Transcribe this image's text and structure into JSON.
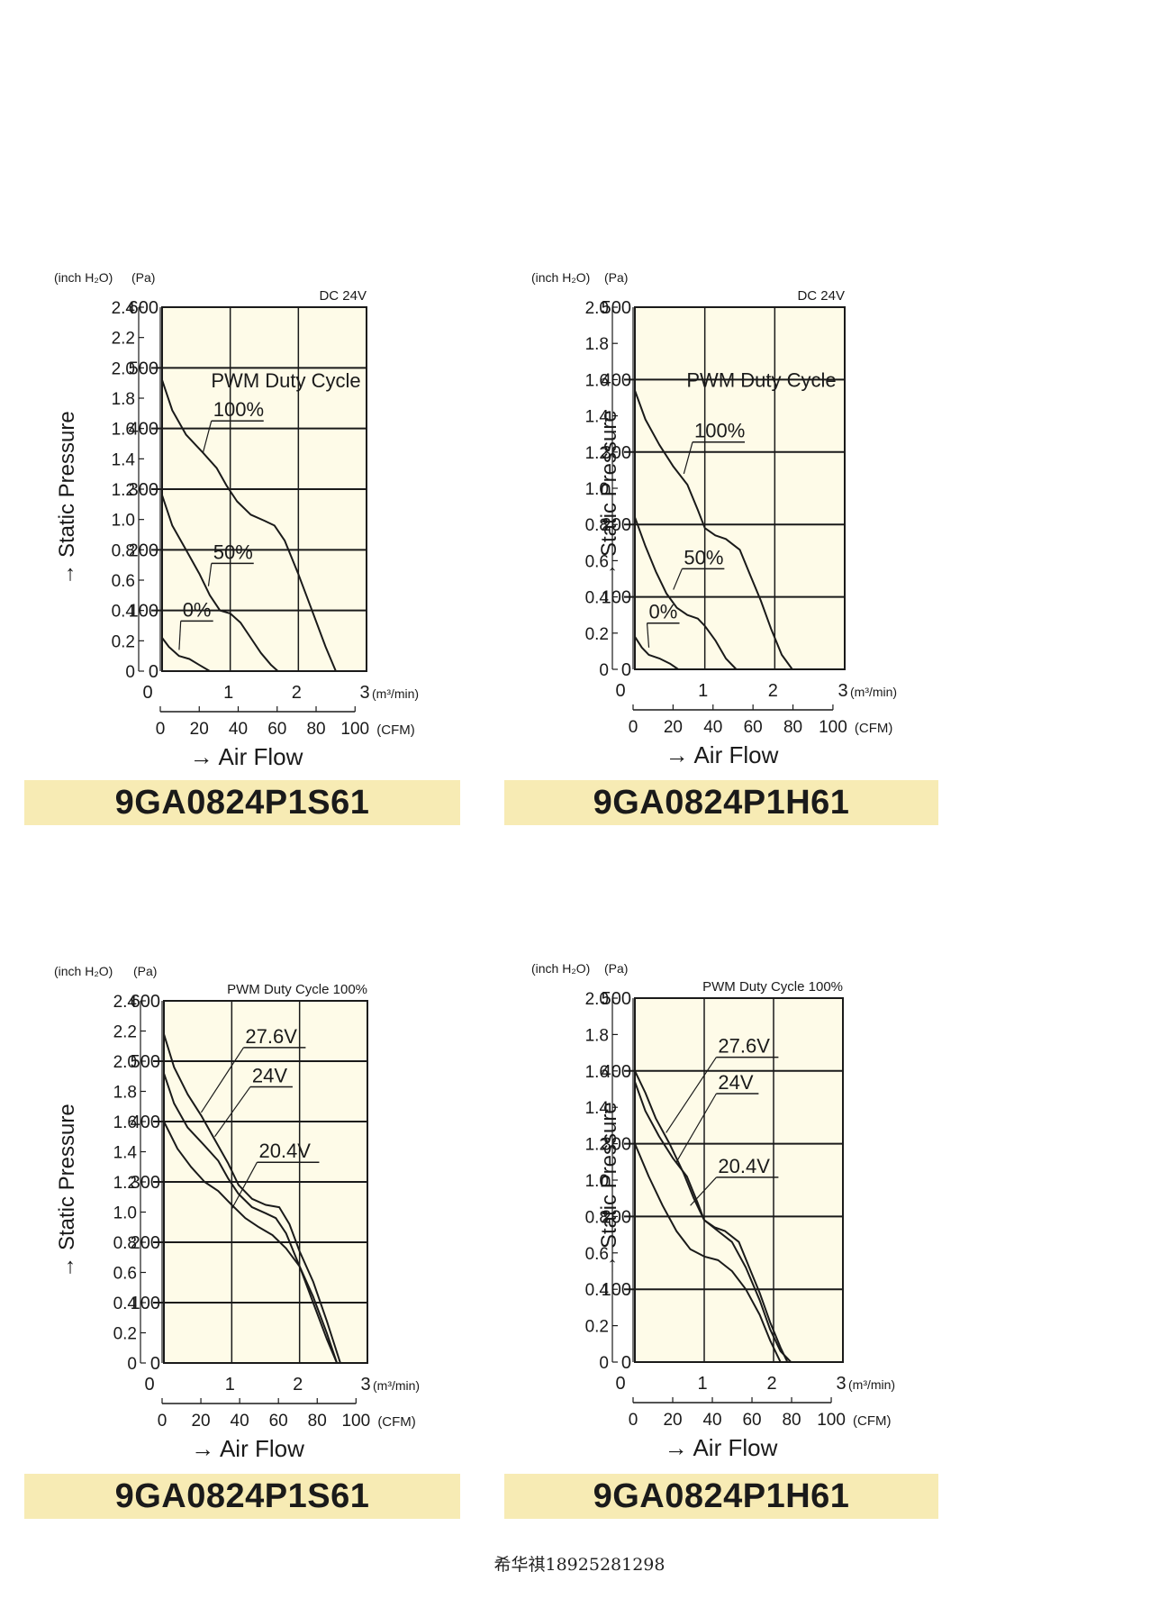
{
  "chart_data": [
    {
      "type": "line",
      "condition": "DC 24V",
      "y_left_label": "(inch H₂O)",
      "y_right_label": "(Pa)",
      "y_axis_title": "→ Static Pressure",
      "x_axis_title": "→ Air Flow",
      "x_unit_m3": "(m³/min)",
      "x_unit_cfm": "(CFM)",
      "legend_title": "PWM Duty Cycle",
      "xlim": [
        0,
        3
      ],
      "ylim": [
        0,
        600
      ],
      "y_pa_ticks": [
        0,
        100,
        200,
        300,
        400,
        500,
        600
      ],
      "y_pa_tick_labels": [
        "0",
        "100",
        "200",
        "300",
        "400",
        "500",
        "600"
      ],
      "y_in_ticks": [
        "0",
        "0.2",
        "0.4",
        "0.6",
        "0.8",
        "1.0",
        "1.2",
        "1.4",
        "1.6",
        "1.8",
        "2.0",
        "2.2",
        "2.4"
      ],
      "x_m3_ticks": [
        "0",
        "1",
        "2",
        "3"
      ],
      "x_cfm_ticks": [
        "0",
        "20",
        "40",
        "60",
        "80",
        "100"
      ],
      "series": [
        {
          "name": "100%",
          "label_pos": [
            0.75,
            420
          ],
          "pointer": [
            0.6,
            360
          ],
          "x": [
            0,
            0.15,
            0.35,
            0.6,
            0.8,
            0.95,
            1.1,
            1.3,
            1.5,
            1.65,
            1.8,
            2.0,
            2.2,
            2.4,
            2.55
          ],
          "y": [
            480,
            430,
            390,
            360,
            335,
            305,
            280,
            258,
            248,
            240,
            215,
            160,
            100,
            40,
            0
          ]
        },
        {
          "name": "50%",
          "label_pos": [
            0.75,
            185
          ],
          "pointer": [
            0.68,
            140
          ],
          "x": [
            0,
            0.15,
            0.35,
            0.55,
            0.7,
            0.85,
            1.0,
            1.15,
            1.3,
            1.45,
            1.6,
            1.7
          ],
          "y": [
            290,
            240,
            200,
            160,
            125,
            100,
            95,
            80,
            55,
            30,
            10,
            0
          ]
        },
        {
          "name": "0%",
          "label_pos": [
            0.3,
            90
          ],
          "pointer": [
            0.25,
            35
          ],
          "x": [
            0,
            0.1,
            0.25,
            0.4,
            0.55,
            0.7
          ],
          "y": [
            55,
            40,
            25,
            20,
            10,
            0
          ]
        }
      ],
      "model": "9GA0824P1S61"
    },
    {
      "type": "line",
      "condition": "DC 24V",
      "y_left_label": "(inch H₂O)",
      "y_right_label": "(Pa)",
      "y_axis_title": "→ Static Pressure",
      "x_axis_title": "→ Air Flow",
      "x_unit_m3": "(m³/min)",
      "x_unit_cfm": "(CFM)",
      "legend_title": "PWM Duty Cycle",
      "xlim": [
        0,
        3
      ],
      "ylim": [
        0,
        500
      ],
      "y_pa_ticks": [
        0,
        100,
        200,
        300,
        400,
        500
      ],
      "y_pa_tick_labels": [
        "0",
        "100",
        "200",
        "300",
        "400",
        "500"
      ],
      "y_in_ticks": [
        "0",
        "0.2",
        "0.4",
        "0.6",
        "0.8",
        "1.0",
        "1.2",
        "1.4",
        "1.6",
        "1.8",
        "2.0"
      ],
      "x_m3_ticks": [
        "0",
        "1",
        "2",
        "3"
      ],
      "x_cfm_ticks": [
        "0",
        "20",
        "40",
        "60",
        "80",
        "100"
      ],
      "series": [
        {
          "name": "100%",
          "label_pos": [
            0.85,
            320
          ],
          "pointer": [
            0.7,
            270
          ],
          "x": [
            0,
            0.15,
            0.35,
            0.55,
            0.75,
            0.9,
            1.0,
            1.15,
            1.3,
            1.5,
            1.65,
            1.8,
            1.95,
            2.1,
            2.25
          ],
          "y": [
            385,
            345,
            310,
            280,
            255,
            220,
            195,
            185,
            180,
            165,
            130,
            95,
            55,
            20,
            0
          ]
        },
        {
          "name": "50%",
          "label_pos": [
            0.7,
            145
          ],
          "pointer": [
            0.55,
            110
          ],
          "x": [
            0,
            0.15,
            0.3,
            0.45,
            0.6,
            0.75,
            0.9,
            1.0,
            1.15,
            1.3,
            1.45
          ],
          "y": [
            210,
            170,
            135,
            105,
            85,
            75,
            70,
            60,
            40,
            15,
            0
          ]
        },
        {
          "name": "0%",
          "label_pos": [
            0.2,
            70
          ],
          "pointer": [
            0.2,
            30
          ],
          "x": [
            0,
            0.1,
            0.2,
            0.35,
            0.5,
            0.62
          ],
          "y": [
            45,
            30,
            20,
            15,
            8,
            0
          ]
        }
      ],
      "model": "9GA0824P1H61"
    },
    {
      "type": "line",
      "condition": "PWM Duty Cycle 100%",
      "y_left_label": "(inch H₂O)",
      "y_right_label": "(Pa)",
      "y_axis_title": "→ Static Pressure",
      "x_axis_title": "→ Air Flow",
      "x_unit_m3": "(m³/min)",
      "x_unit_cfm": "(CFM)",
      "xlim": [
        0,
        3
      ],
      "ylim": [
        0,
        600
      ],
      "y_pa_ticks": [
        0,
        100,
        200,
        300,
        400,
        500,
        600
      ],
      "y_pa_tick_labels": [
        "0",
        "100",
        "200",
        "300",
        "400",
        "500",
        "600"
      ],
      "y_in_ticks": [
        "0",
        "0.2",
        "0.4",
        "0.6",
        "0.8",
        "1.0",
        "1.2",
        "1.4",
        "1.6",
        "1.8",
        "2.0",
        "2.2",
        "2.4"
      ],
      "x_m3_ticks": [
        "0",
        "1",
        "2",
        "3"
      ],
      "x_cfm_ticks": [
        "0",
        "20",
        "40",
        "60",
        "80",
        "100"
      ],
      "series": [
        {
          "name": "27.6V",
          "label_pos": [
            1.2,
            530
          ],
          "pointer": [
            0.55,
            415
          ],
          "x": [
            0,
            0.15,
            0.35,
            0.55,
            0.75,
            0.95,
            1.1,
            1.3,
            1.5,
            1.7,
            1.85,
            2.0,
            2.2,
            2.4,
            2.6
          ],
          "y": [
            545,
            490,
            445,
            410,
            370,
            330,
            295,
            272,
            262,
            258,
            230,
            185,
            135,
            70,
            0
          ]
        },
        {
          "name": "24V",
          "label_pos": [
            1.3,
            465
          ],
          "pointer": [
            0.75,
            375
          ],
          "x": [
            0,
            0.15,
            0.35,
            0.6,
            0.8,
            0.95,
            1.1,
            1.3,
            1.5,
            1.65,
            1.8,
            2.0,
            2.2,
            2.4,
            2.55
          ],
          "y": [
            480,
            430,
            390,
            360,
            335,
            305,
            280,
            258,
            248,
            240,
            215,
            160,
            100,
            40,
            0
          ]
        },
        {
          "name": "20.4V",
          "label_pos": [
            1.4,
            340
          ],
          "pointer": [
            1.0,
            255
          ],
          "x": [
            0,
            0.2,
            0.4,
            0.6,
            0.8,
            1.0,
            1.2,
            1.4,
            1.6,
            1.8,
            2.0,
            2.2,
            2.4,
            2.55
          ],
          "y": [
            400,
            355,
            325,
            300,
            285,
            262,
            240,
            225,
            212,
            190,
            160,
            110,
            50,
            0
          ]
        }
      ],
      "model": "9GA0824P1S61"
    },
    {
      "type": "line",
      "condition": "PWM Duty Cycle 100%",
      "y_left_label": "(inch H₂O)",
      "y_right_label": "(Pa)",
      "y_axis_title": "→ Static Pressure",
      "x_axis_title": "→ Air Flow",
      "x_unit_m3": "(m³/min)",
      "x_unit_cfm": "(CFM)",
      "xlim": [
        0,
        3
      ],
      "ylim": [
        0,
        500
      ],
      "y_pa_ticks": [
        0,
        100,
        200,
        300,
        400,
        500
      ],
      "y_pa_tick_labels": [
        "0",
        "100",
        "200",
        "300",
        "400",
        "500"
      ],
      "y_in_ticks": [
        "0",
        "0.2",
        "0.4",
        "0.6",
        "0.8",
        "1.0",
        "1.2",
        "1.4",
        "1.6",
        "1.8",
        "2.0"
      ],
      "x_m3_ticks": [
        "0",
        "1",
        "2",
        "3"
      ],
      "x_cfm_ticks": [
        "0",
        "20",
        "40",
        "60",
        "80",
        "100"
      ],
      "series": [
        {
          "name": "27.6V",
          "label_pos": [
            1.2,
            425
          ],
          "pointer": [
            0.45,
            315
          ],
          "x": [
            0,
            0.15,
            0.3,
            0.5,
            0.7,
            0.85,
            1.0,
            1.2,
            1.4,
            1.6,
            1.8,
            1.95,
            2.1,
            2.25
          ],
          "y": [
            400,
            370,
            335,
            300,
            260,
            225,
            195,
            180,
            165,
            130,
            85,
            45,
            15,
            0
          ]
        },
        {
          "name": "24V",
          "label_pos": [
            1.2,
            375
          ],
          "pointer": [
            0.6,
            275
          ],
          "x": [
            0,
            0.15,
            0.35,
            0.55,
            0.75,
            0.9,
            1.0,
            1.15,
            1.3,
            1.5,
            1.65,
            1.8,
            1.95,
            2.1,
            2.2
          ],
          "y": [
            385,
            345,
            310,
            280,
            255,
            220,
            195,
            185,
            180,
            165,
            130,
            95,
            55,
            20,
            0
          ]
        },
        {
          "name": "20.4V",
          "label_pos": [
            1.2,
            260
          ],
          "pointer": [
            0.8,
            215
          ],
          "x": [
            0,
            0.2,
            0.4,
            0.6,
            0.8,
            1.0,
            1.2,
            1.4,
            1.6,
            1.8,
            1.95,
            2.1
          ],
          "y": [
            300,
            255,
            215,
            180,
            155,
            145,
            140,
            125,
            100,
            65,
            30,
            0
          ]
        }
      ],
      "model": "9GA0824P1H61"
    }
  ],
  "footer_text": "希华祺18925281298"
}
